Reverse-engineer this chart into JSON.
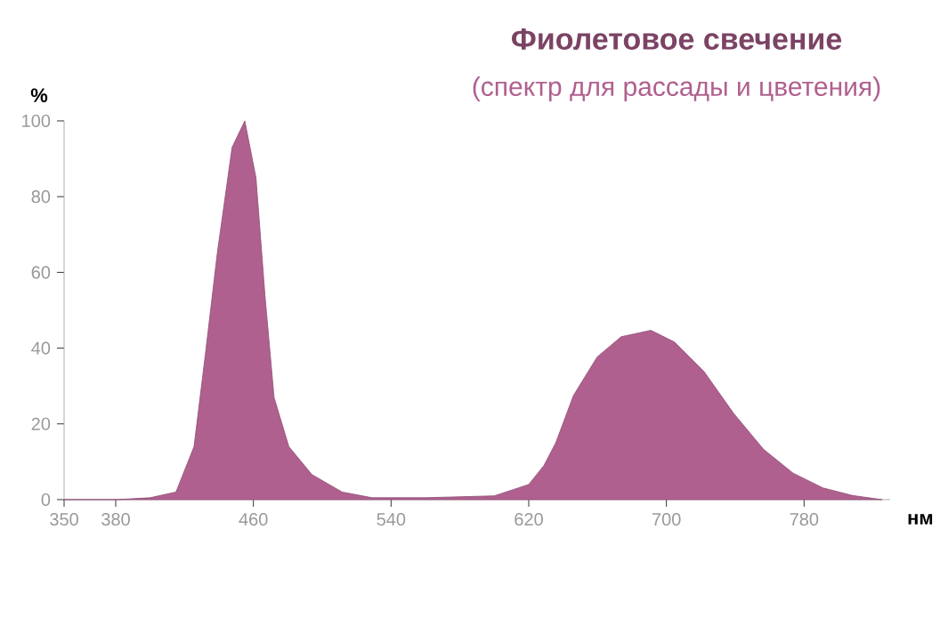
{
  "chart_data": {
    "type": "area",
    "title": "Фиолетовое свечение",
    "subtitle": "(спектр для рассады и цветения)",
    "xlabel": "нм",
    "ylabel": "%",
    "x": [
      350,
      380,
      400,
      415,
      425.5,
      432,
      439,
      447.6,
      455,
      461.5,
      466.7,
      472,
      480.6,
      494,
      511.6,
      529,
      560,
      600,
      620,
      628.8,
      635.7,
      646,
      659.8,
      673.7,
      691,
      704.7,
      721.9,
      739,
      756.4,
      773.6,
      790.9,
      808,
      825.3
    ],
    "values": [
      0,
      0,
      0.5,
      2,
      14,
      38,
      65,
      93,
      100,
      85,
      54,
      27,
      14,
      6.6,
      2,
      0.5,
      0.5,
      1,
      4,
      9,
      15,
      27.5,
      37.7,
      43,
      44.7,
      41.6,
      33.8,
      22.8,
      13.3,
      7,
      3.1,
      1.1,
      0
    ],
    "color": "#b0608f",
    "xlim": [
      350,
      830
    ],
    "ylim": [
      0,
      100
    ],
    "xticks": [
      350,
      380,
      460,
      540,
      620,
      700,
      780
    ],
    "yticks": [
      0,
      20,
      40,
      60,
      80,
      100
    ],
    "grid": false
  }
}
